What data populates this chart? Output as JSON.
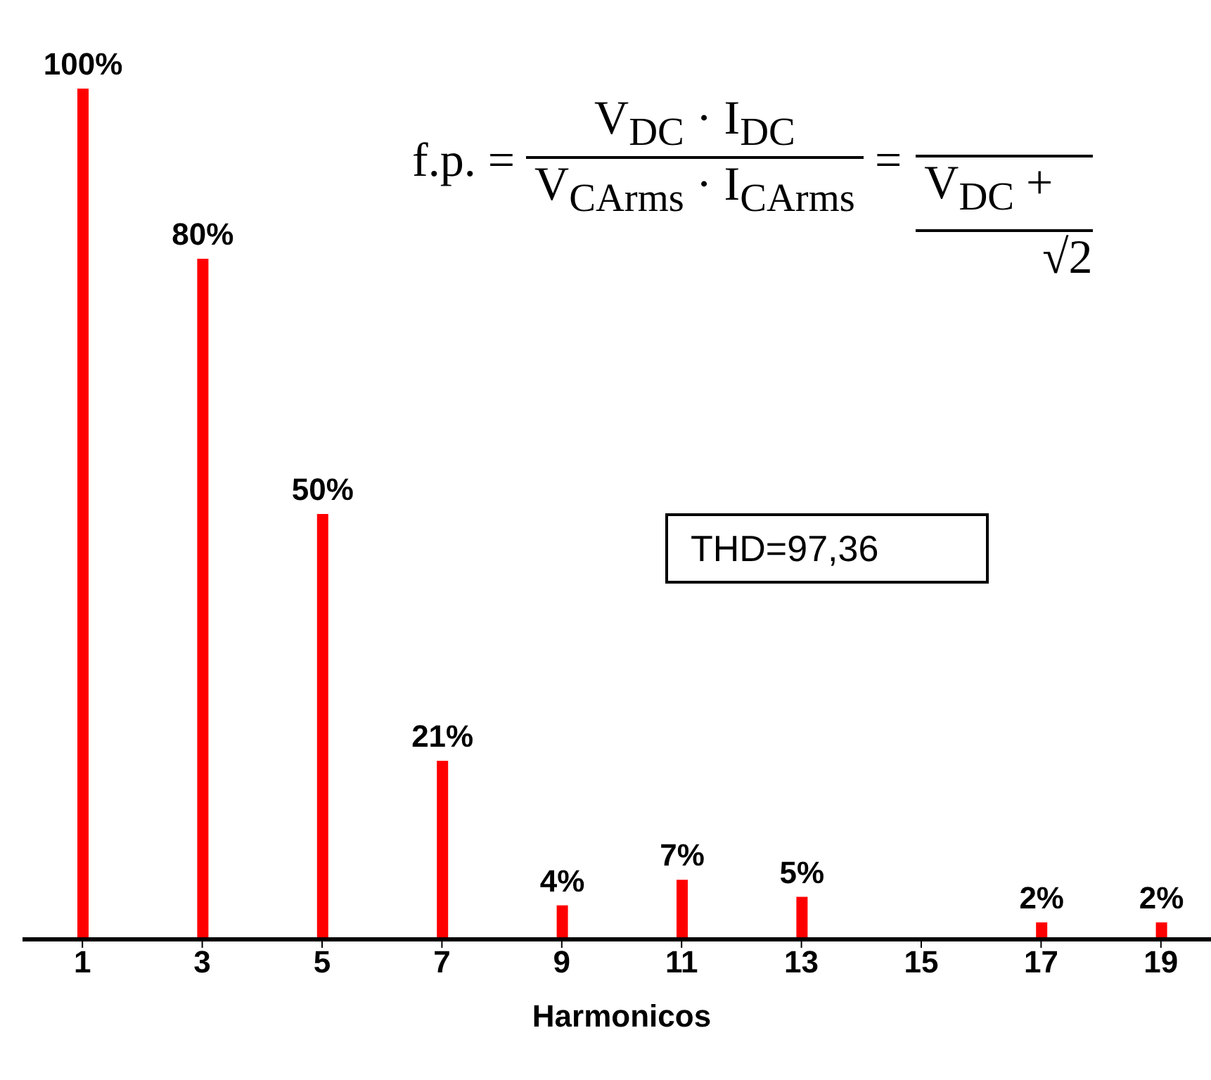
{
  "chart_data": {
    "type": "bar",
    "xlabel": "Harmonicos",
    "x": [
      1,
      3,
      5,
      7,
      9,
      11,
      13,
      15,
      17,
      19
    ],
    "xlim": [
      0,
      20
    ],
    "xticks": [
      1,
      3,
      5,
      7,
      9,
      11,
      13,
      15,
      17,
      19
    ],
    "values": [
      100,
      80,
      50,
      21,
      4,
      7,
      5,
      null,
      2,
      2
    ],
    "value_labels": [
      "100%",
      "80%",
      "50%",
      "21%",
      "4%",
      "7%",
      "5%",
      null,
      "2%",
      "2%"
    ],
    "color": "#ff0000",
    "annotations": [
      "THD=97,36",
      "f.p. =",
      "V$_{DC}$ · I$_{DC}$",
      "V$_{CArms}$ · I$_{CArms}$",
      "=",
      "V$_{DC}$ +",
      "√2"
    ]
  }
}
